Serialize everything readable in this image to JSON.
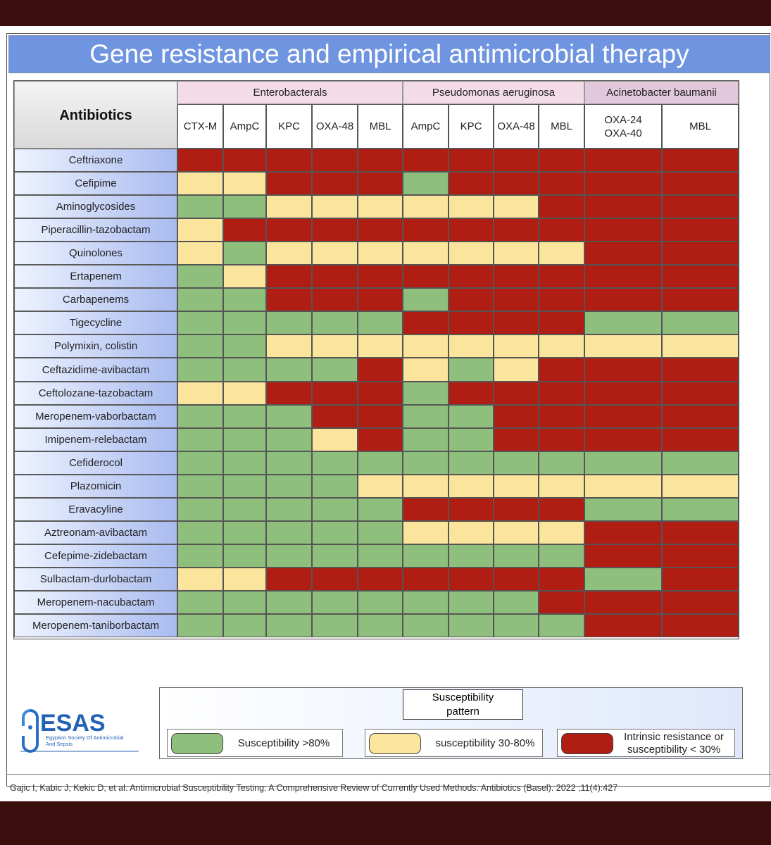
{
  "title": "Gene resistance and empirical antimicrobial therapy",
  "antibiotics_header": "Antibiotics",
  "groups": [
    {
      "label": "Enterobacterals"
    },
    {
      "label": "Pseudomonas aeruginosa"
    },
    {
      "label": "Acinetobacter baumanii"
    }
  ],
  "genes": [
    "CTX-M",
    "AmpC",
    "KPC",
    "OXA-48",
    "MBL",
    "AmpC",
    "KPC",
    "OXA-48",
    "MBL",
    "OXA-24\nOXA-40",
    "MBL"
  ],
  "rows": [
    {
      "name": "Ceftriaxone",
      "cells": [
        "r",
        "r",
        "r",
        "r",
        "r",
        "r",
        "r",
        "r",
        "r",
        "r",
        "r"
      ]
    },
    {
      "name": "Cefipime",
      "cells": [
        "y",
        "y",
        "r",
        "r",
        "r",
        "g",
        "r",
        "r",
        "r",
        "r",
        "r"
      ]
    },
    {
      "name": "Aminoglycosides",
      "cells": [
        "g",
        "g",
        "y",
        "y",
        "y",
        "y",
        "y",
        "y",
        "r",
        "r",
        "r"
      ]
    },
    {
      "name": "Piperacillin-tazobactam",
      "cells": [
        "y",
        "r",
        "r",
        "r",
        "r",
        "r",
        "r",
        "r",
        "r",
        "r",
        "r"
      ]
    },
    {
      "name": "Quinolones",
      "cells": [
        "y",
        "g",
        "y",
        "y",
        "y",
        "y",
        "y",
        "y",
        "y",
        "r",
        "r"
      ]
    },
    {
      "name": "Ertapenem",
      "cells": [
        "g",
        "y",
        "r",
        "r",
        "r",
        "r",
        "r",
        "r",
        "r",
        "r",
        "r"
      ]
    },
    {
      "name": "Carbapenems",
      "cells": [
        "g",
        "g",
        "r",
        "r",
        "r",
        "g",
        "r",
        "r",
        "r",
        "r",
        "r"
      ]
    },
    {
      "name": "Tigecycline",
      "cells": [
        "g",
        "g",
        "g",
        "g",
        "g",
        "r",
        "r",
        "r",
        "r",
        "g",
        "g"
      ]
    },
    {
      "name": "Polymixin, colistin",
      "cells": [
        "g",
        "g",
        "y",
        "y",
        "y",
        "y",
        "y",
        "y",
        "y",
        "y",
        "y"
      ]
    },
    {
      "name": "Ceftazidime-avibactam",
      "cells": [
        "g",
        "g",
        "g",
        "g",
        "r",
        "y",
        "g",
        "y",
        "r",
        "r",
        "r"
      ]
    },
    {
      "name": "Ceftolozane-tazobactam",
      "cells": [
        "y",
        "y",
        "r",
        "r",
        "r",
        "g",
        "r",
        "r",
        "r",
        "r",
        "r"
      ]
    },
    {
      "name": "Meropenem-vaborbactam",
      "cells": [
        "g",
        "g",
        "g",
        "r",
        "r",
        "g",
        "g",
        "r",
        "r",
        "r",
        "r"
      ]
    },
    {
      "name": "Imipenem-relebactam",
      "cells": [
        "g",
        "g",
        "g",
        "y",
        "r",
        "g",
        "g",
        "r",
        "r",
        "r",
        "r"
      ]
    },
    {
      "name": "Cefiderocol",
      "cells": [
        "g",
        "g",
        "g",
        "g",
        "g",
        "g",
        "g",
        "g",
        "g",
        "g",
        "g"
      ]
    },
    {
      "name": "Plazomicin",
      "cells": [
        "g",
        "g",
        "g",
        "g",
        "y",
        "y",
        "y",
        "y",
        "y",
        "y",
        "y"
      ]
    },
    {
      "name": "Eravacyline",
      "cells": [
        "g",
        "g",
        "g",
        "g",
        "g",
        "r",
        "r",
        "r",
        "r",
        "g",
        "g"
      ]
    },
    {
      "name": "Aztreonam-avibactam",
      "cells": [
        "g",
        "g",
        "g",
        "g",
        "g",
        "y",
        "y",
        "y",
        "y",
        "r",
        "r"
      ]
    },
    {
      "name": "Cefepime-zidebactam",
      "cells": [
        "g",
        "g",
        "g",
        "g",
        "g",
        "g",
        "g",
        "g",
        "g",
        "r",
        "r"
      ]
    },
    {
      "name": "Sulbactam-durlobactam",
      "cells": [
        "y",
        "y",
        "r",
        "r",
        "r",
        "r",
        "r",
        "r",
        "r",
        "g",
        "r"
      ]
    },
    {
      "name": "Meropenem-nacubactam",
      "cells": [
        "g",
        "g",
        "g",
        "g",
        "g",
        "g",
        "g",
        "g",
        "r",
        "r",
        "r"
      ]
    },
    {
      "name": "Meropenem-taniborbactam",
      "cells": [
        "g",
        "g",
        "g",
        "g",
        "g",
        "g",
        "g",
        "g",
        "g",
        "r",
        "r"
      ]
    }
  ],
  "legend": {
    "title": "Susceptibility\npattern",
    "items": [
      {
        "key": "g",
        "label": "Susceptibility >80%",
        "color": "#8fbf7c"
      },
      {
        "key": "y",
        "label": "susceptibility 30-80%",
        "color": "#fbe59d"
      },
      {
        "key": "r",
        "label": "Intrinsic resistance or\nsusceptibility < 30%",
        "color": "#b01d12"
      }
    ]
  },
  "logo": {
    "name": "ESAS",
    "subtitle": "Egyption Society Of Antimicrobial\nAnd Sepsis"
  },
  "citation": "Gajic I, Kabic J, Kekic D, et al. Antimicrobial Susceptibility Testing: A Comprehensive Review of Currently Used Methods. Antibiotics (Basel). 2022 ;11(4):427",
  "colors": {
    "green": "#8fbf7c",
    "yellow": "#fbe59d",
    "red": "#b01d12",
    "title_bar": "#6f94e0",
    "frame_outside": "#3a0f0d"
  }
}
